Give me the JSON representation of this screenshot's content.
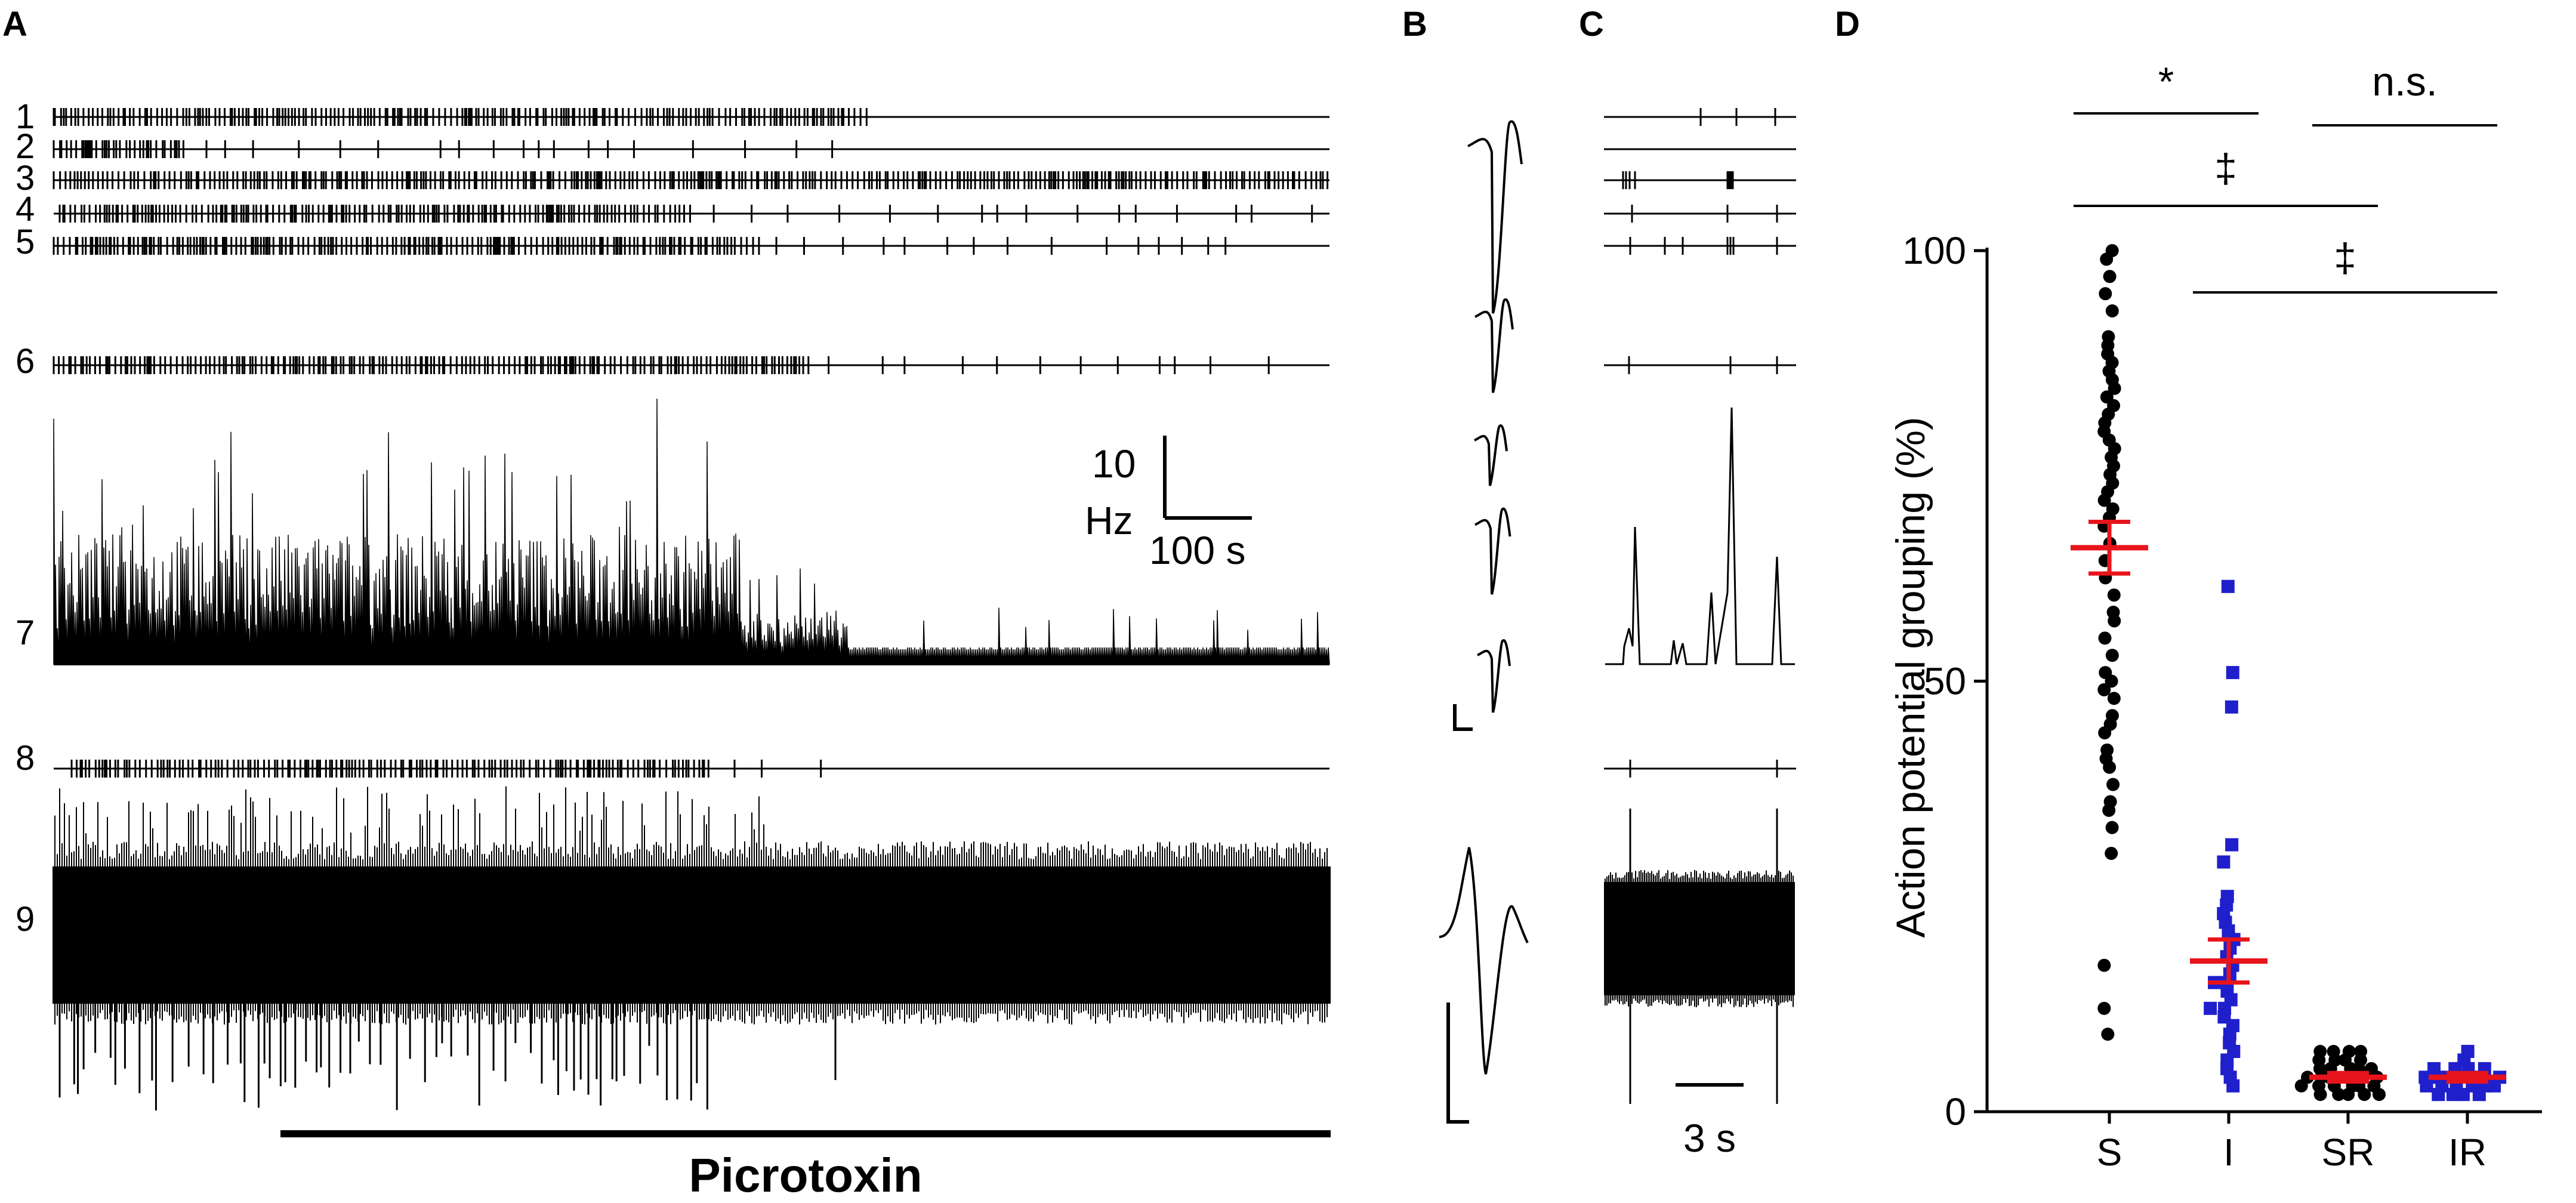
{
  "panel_letters": [
    "A",
    "B",
    "C",
    "D"
  ],
  "panelA": {
    "trace_labels": [
      "1",
      "2",
      "3",
      "4",
      "5",
      "6",
      "7",
      "8",
      "9"
    ],
    "scale_bar": {
      "y_value": "10",
      "y_unit": "Hz",
      "x_label": "100 s"
    },
    "drug_label": "Picrotoxin"
  },
  "panelC": {
    "time_scale": "3 s"
  },
  "chart_data": {
    "type": "scatter",
    "title": "",
    "xlabel": "",
    "ylabel": "Action potential grouping (%)",
    "categories": [
      "S",
      "I",
      "SR",
      "IR"
    ],
    "ylim": [
      0,
      100
    ],
    "yticks": [
      0,
      50,
      100
    ],
    "series": [
      {
        "category": "S",
        "color": "#000000",
        "marker": "circle",
        "mean": 65.5,
        "sem": 3,
        "values": [
          100,
          99,
          97,
          95,
          93,
          90,
          89,
          88,
          87,
          86,
          85,
          84,
          83,
          82,
          81,
          80,
          79,
          78,
          77,
          76,
          75,
          74,
          73,
          72,
          71,
          70,
          69,
          68,
          66,
          64,
          62,
          60,
          58,
          57,
          55,
          53,
          51,
          50,
          49,
          48,
          46,
          45,
          44,
          42,
          41,
          40,
          38,
          36,
          35,
          33,
          30,
          17,
          12,
          9
        ]
      },
      {
        "category": "I",
        "color": "#1f1fcc",
        "marker": "square",
        "mean": 17.5,
        "sem": 2.5,
        "values": [
          61,
          51,
          47,
          31,
          29,
          25,
          24,
          23,
          22,
          21,
          20,
          19,
          18,
          17,
          16,
          15,
          15,
          14,
          13,
          12,
          12,
          11,
          10,
          9,
          8,
          7,
          6,
          5,
          4,
          3
        ]
      },
      {
        "category": "SR",
        "color": "#000000",
        "marker": "circle",
        "mean": 4,
        "sem": 0.5,
        "values": [
          7,
          7,
          7,
          7,
          6,
          6,
          6,
          6,
          5,
          5,
          5,
          5,
          5,
          4,
          4,
          4,
          4,
          4,
          4,
          3,
          3,
          3,
          3,
          3,
          3,
          2,
          2,
          2,
          2,
          2
        ]
      },
      {
        "category": "IR",
        "color": "#1f1fcc",
        "marker": "square",
        "mean": 4,
        "sem": 0.5,
        "values": [
          7,
          6,
          5,
          5,
          5,
          5,
          4,
          4,
          4,
          4,
          4,
          4,
          3,
          3,
          3,
          3,
          3,
          3,
          2,
          2,
          2,
          2
        ]
      }
    ],
    "mean_color": "#e8141b",
    "significance": [
      {
        "from": "S",
        "to": "I",
        "label": "*"
      },
      {
        "from": "S",
        "to": "SR",
        "label": "‡"
      },
      {
        "from": "I",
        "to": "IR",
        "label": "‡"
      },
      {
        "from": "SR",
        "to": "IR",
        "label": "n.s."
      }
    ]
  }
}
